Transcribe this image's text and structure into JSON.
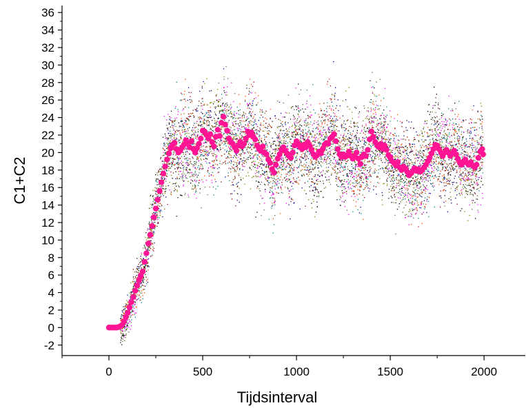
{
  "chart_data": {
    "type": "scatter",
    "title": "",
    "xlabel": "Tijdsinterval",
    "ylabel": "C1+C2",
    "xlim": [
      -250,
      2220
    ],
    "ylim": [
      -3.2,
      36.8
    ],
    "x_ticks": [
      0,
      500,
      1000,
      1500,
      2000
    ],
    "y_ticks": [
      -2,
      0,
      2,
      4,
      6,
      8,
      10,
      12,
      14,
      16,
      18,
      20,
      22,
      24,
      26,
      28,
      30,
      32,
      34,
      36
    ],
    "grid": false,
    "legend": "none",
    "series": [
      {
        "role": "mean",
        "color": "#ff1493",
        "marker": "circle",
        "points": [
          [
            0,
            0
          ],
          [
            10,
            0
          ],
          [
            20,
            0
          ],
          [
            30,
            0
          ],
          [
            40,
            0
          ],
          [
            50,
            0.05
          ],
          [
            60,
            0.15
          ],
          [
            70,
            0.3
          ],
          [
            80,
            0.7
          ],
          [
            90,
            1.2
          ],
          [
            100,
            1.7
          ],
          [
            110,
            2.3
          ],
          [
            120,
            2.9
          ],
          [
            130,
            3.5
          ],
          [
            140,
            4.2
          ],
          [
            150,
            4.8
          ],
          [
            160,
            5.4
          ],
          [
            170,
            5.9
          ],
          [
            180,
            6.4
          ],
          [
            190,
            7.5
          ],
          [
            200,
            8.5
          ],
          [
            210,
            9.6
          ],
          [
            220,
            10.6
          ],
          [
            230,
            11.6
          ],
          [
            240,
            12.6
          ],
          [
            250,
            13.6
          ],
          [
            260,
            14.6
          ],
          [
            270,
            15.6
          ],
          [
            280,
            16.6
          ],
          [
            290,
            17.6
          ],
          [
            300,
            18.4
          ],
          [
            310,
            19.2
          ],
          [
            320,
            19.9
          ],
          [
            330,
            20.5
          ],
          [
            340,
            20.9
          ],
          [
            350,
            21.1
          ],
          [
            360,
            20.4
          ],
          [
            370,
            20.0
          ],
          [
            380,
            20.2
          ],
          [
            390,
            20.6
          ],
          [
            400,
            20.9
          ],
          [
            410,
            21.4
          ],
          [
            420,
            21.0
          ],
          [
            430,
            20.6
          ],
          [
            440,
            21.3
          ],
          [
            450,
            20.4
          ],
          [
            460,
            20.0
          ],
          [
            470,
            20.5
          ],
          [
            480,
            21.0
          ],
          [
            490,
            21.6
          ],
          [
            500,
            22.5
          ],
          [
            510,
            22.4
          ],
          [
            520,
            22.0
          ],
          [
            530,
            21.6
          ],
          [
            540,
            22.1
          ],
          [
            550,
            21.2
          ],
          [
            560,
            20.7
          ],
          [
            570,
            21.8
          ],
          [
            580,
            22.6
          ],
          [
            590,
            21.9
          ],
          [
            600,
            23.4
          ],
          [
            610,
            24.1
          ],
          [
            620,
            23.2
          ],
          [
            630,
            22.5
          ],
          [
            640,
            21.6
          ],
          [
            650,
            21.2
          ],
          [
            660,
            21.0
          ],
          [
            670,
            20.6
          ],
          [
            680,
            20.2
          ],
          [
            690,
            20.8
          ],
          [
            700,
            21.2
          ],
          [
            710,
            20.7
          ],
          [
            720,
            21.0
          ],
          [
            730,
            21.6
          ],
          [
            740,
            22.4
          ],
          [
            750,
            22.0
          ],
          [
            760,
            22.3
          ],
          [
            770,
            21.8
          ],
          [
            780,
            21.5
          ],
          [
            790,
            20.8
          ],
          [
            800,
            20.4
          ],
          [
            810,
            20.2
          ],
          [
            820,
            20.7
          ],
          [
            830,
            20.0
          ],
          [
            840,
            19.8
          ],
          [
            850,
            19.2
          ],
          [
            860,
            18.8
          ],
          [
            870,
            18.1
          ],
          [
            880,
            17.7
          ],
          [
            890,
            18.6
          ],
          [
            900,
            19.3
          ],
          [
            910,
            19.8
          ],
          [
            920,
            20.3
          ],
          [
            930,
            20.6
          ],
          [
            940,
            20.2
          ],
          [
            950,
            19.9
          ],
          [
            960,
            19.6
          ],
          [
            970,
            19.4
          ],
          [
            980,
            20.0
          ],
          [
            990,
            20.8
          ],
          [
            1000,
            21.3
          ],
          [
            1010,
            21.0
          ],
          [
            1020,
            20.6
          ],
          [
            1030,
            20.4
          ],
          [
            1040,
            20.9
          ],
          [
            1050,
            20.6
          ],
          [
            1060,
            21.2
          ],
          [
            1070,
            20.8
          ],
          [
            1080,
            20.3
          ],
          [
            1090,
            19.8
          ],
          [
            1100,
            19.5
          ],
          [
            1110,
            19.7
          ],
          [
            1120,
            20.1
          ],
          [
            1130,
            19.9
          ],
          [
            1140,
            20.4
          ],
          [
            1150,
            20.9
          ],
          [
            1160,
            21.1
          ],
          [
            1170,
            21.0
          ],
          [
            1180,
            21.6
          ],
          [
            1190,
            21.8
          ],
          [
            1200,
            22.1
          ],
          [
            1210,
            21.3
          ],
          [
            1220,
            20.4
          ],
          [
            1230,
            19.8
          ],
          [
            1240,
            19.5
          ],
          [
            1250,
            19.8
          ],
          [
            1260,
            19.5
          ],
          [
            1270,
            19.7
          ],
          [
            1280,
            20.1
          ],
          [
            1290,
            19.6
          ],
          [
            1300,
            19.3
          ],
          [
            1310,
            19.6
          ],
          [
            1320,
            20.0
          ],
          [
            1330,
            19.3
          ],
          [
            1340,
            18.7
          ],
          [
            1350,
            19.5
          ],
          [
            1360,
            19.8
          ],
          [
            1370,
            19.6
          ],
          [
            1380,
            20.3
          ],
          [
            1390,
            21.5
          ],
          [
            1400,
            22.4
          ],
          [
            1410,
            21.8
          ],
          [
            1420,
            21.2
          ],
          [
            1430,
            20.8
          ],
          [
            1440,
            20.6
          ],
          [
            1450,
            21.0
          ],
          [
            1460,
            20.4
          ],
          [
            1470,
            20.8
          ],
          [
            1480,
            20.3
          ],
          [
            1490,
            19.7
          ],
          [
            1500,
            19.4
          ],
          [
            1510,
            19.0
          ],
          [
            1520,
            18.8
          ],
          [
            1530,
            18.5
          ],
          [
            1540,
            18.9
          ],
          [
            1550,
            18.3
          ],
          [
            1560,
            18.0
          ],
          [
            1570,
            18.4
          ],
          [
            1580,
            18.2
          ],
          [
            1590,
            17.8
          ],
          [
            1600,
            17.4
          ],
          [
            1610,
            17.6
          ],
          [
            1620,
            17.9
          ],
          [
            1630,
            18.2
          ],
          [
            1640,
            17.9
          ],
          [
            1650,
            18.1
          ],
          [
            1660,
            17.8
          ],
          [
            1670,
            18.0
          ],
          [
            1680,
            18.3
          ],
          [
            1690,
            18.6
          ],
          [
            1700,
            19.0
          ],
          [
            1710,
            19.4
          ],
          [
            1720,
            19.9
          ],
          [
            1730,
            20.4
          ],
          [
            1740,
            20.9
          ],
          [
            1750,
            20.8
          ],
          [
            1760,
            20.4
          ],
          [
            1770,
            20.0
          ],
          [
            1780,
            19.6
          ],
          [
            1790,
            20.0
          ],
          [
            1800,
            20.3
          ],
          [
            1810,
            20.0
          ],
          [
            1820,
            19.6
          ],
          [
            1830,
            19.9
          ],
          [
            1840,
            20.2
          ],
          [
            1850,
            19.8
          ],
          [
            1860,
            19.3
          ],
          [
            1870,
            18.9
          ],
          [
            1880,
            18.6
          ],
          [
            1890,
            18.9
          ],
          [
            1900,
            19.2
          ],
          [
            1910,
            18.8
          ],
          [
            1920,
            18.6
          ],
          [
            1930,
            18.9
          ],
          [
            1940,
            18.5
          ],
          [
            1950,
            18.3
          ],
          [
            1960,
            18.6
          ],
          [
            1970,
            19.4
          ],
          [
            1980,
            20.1
          ],
          [
            1990,
            20.4
          ],
          [
            1995,
            19.8
          ]
        ]
      },
      {
        "role": "samples",
        "color": "#00008b",
        "marker": "dot"
      },
      {
        "role": "samples",
        "color": "#8b0000",
        "marker": "dot"
      },
      {
        "role": "samples",
        "color": "#ff4500",
        "marker": "dot"
      },
      {
        "role": "samples",
        "color": "#008080",
        "marker": "dot"
      },
      {
        "role": "samples",
        "color": "#ff00ff",
        "marker": "dot"
      },
      {
        "role": "samples",
        "color": "#556b2f",
        "marker": "dot"
      },
      {
        "role": "samples",
        "color": "#000000",
        "marker": "dot"
      },
      {
        "role": "samples",
        "color": "#808000",
        "marker": "dot"
      }
    ]
  }
}
